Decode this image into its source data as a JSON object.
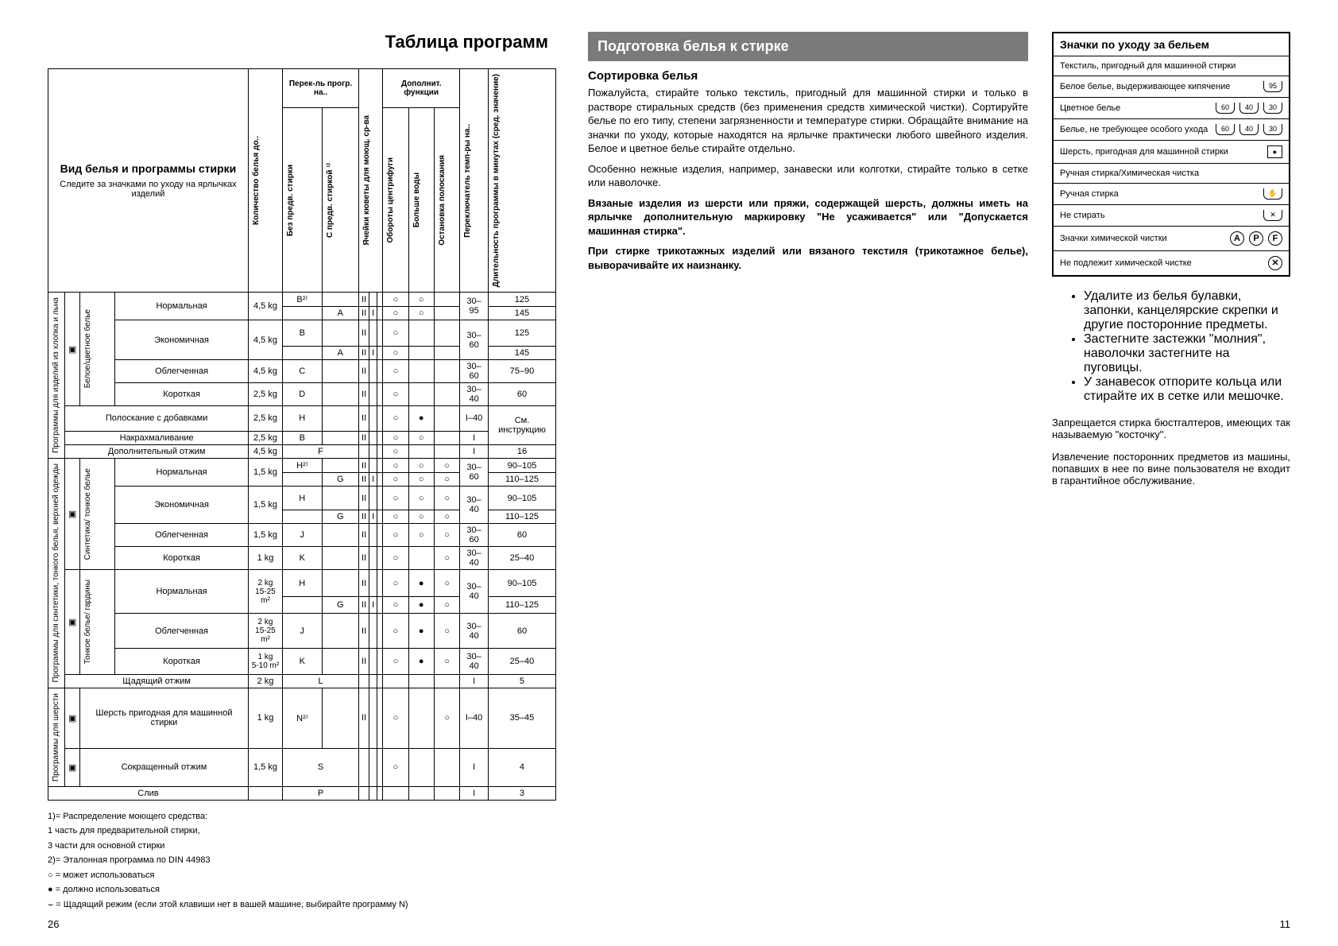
{
  "title": "Таблица программ",
  "table": {
    "header_main": "Вид белья и программы стирки",
    "header_sub": "Следите за значками по уходу на ярлычках изделий",
    "col_kolvo": "Количество белья до..",
    "grp_perekl": "Перек-ль прогр. на..",
    "col_bez": "Без предв. стирки",
    "col_spredv": "С предв. стиркой ¹⁾",
    "col_yacheiki": "Ячейки кюветы для моющ. ср-ва",
    "grp_dopfunc": "Дополнит. функции",
    "col_oboroty": "Обороты центрифуги",
    "col_bolshe": "Больше воды",
    "col_ostanovka": "Остановка полоскания",
    "col_perekl_temp": "Переключатель темп-ры на..",
    "col_dlit": "Длительность программы в минутах (сред. значение)",
    "groups": [
      {
        "vlabel": "Программы для изделий из хлопка и льна",
        "catlabel": "Белое/цветное белье",
        "rows": [
          {
            "name": "Нормальная",
            "wt": "4,5 kg",
            "c1": "B²⁾",
            "c2": "",
            "y1": "II",
            "y2": "",
            "y3": "",
            "f1": "○",
            "f2": "○",
            "f3": "",
            "temp": "30–95",
            "dur": "125",
            "rowspan_temp": 2
          },
          {
            "name": "",
            "wt": "",
            "c1": "",
            "c2": "A",
            "y1": "II",
            "y2": "I",
            "y3": "",
            "f1": "○",
            "f2": "○",
            "f3": "",
            "temp": "",
            "dur": "145"
          },
          {
            "name": "Экономичная",
            "wt": "4,5 kg",
            "c1": "B",
            "c2": "",
            "y1": "II",
            "y2": "",
            "y3": "",
            "f1": "○",
            "f2": "",
            "f3": "",
            "temp": "30–60",
            "dur": "125",
            "rowspan_temp": 2
          },
          {
            "name": "",
            "wt": "",
            "c1": "",
            "c2": "A",
            "y1": "II",
            "y2": "I",
            "y3": "",
            "f1": "○",
            "f2": "",
            "f3": "",
            "temp": "",
            "dur": "145"
          },
          {
            "name": "Облегченная",
            "wt": "4,5 kg",
            "c1": "C",
            "c2": "",
            "y1": "II",
            "y2": "",
            "y3": "",
            "f1": "○",
            "f2": "",
            "f3": "",
            "temp": "30–60",
            "dur": "75–90"
          },
          {
            "name": "Короткая",
            "wt": "2,5 kg",
            "c1": "D",
            "c2": "",
            "y1": "II",
            "y2": "",
            "y3": "",
            "f1": "○",
            "f2": "",
            "f3": "",
            "temp": "30–40",
            "dur": "60"
          }
        ],
        "extras": [
          {
            "name": "Полоскание с добавками",
            "wt": "2,5 kg",
            "c1": "H",
            "c2": "",
            "y1": "II",
            "y2": "",
            "y3": "",
            "f1": "○",
            "f2": "●",
            "f3": "",
            "temp": "I–40",
            "dur": "См. инструкцию",
            "dur_rowspan": 2
          },
          {
            "name": "Накрахмаливание",
            "wt": "2,5 kg",
            "c1": "B",
            "c2": "",
            "y1": "II",
            "y2": "",
            "y3": "",
            "f1": "○",
            "f2": "○",
            "f3": "",
            "temp": "I",
            "dur": ""
          },
          {
            "name": "Дополнительный отжим",
            "wt": "4,5 kg",
            "c1": "F",
            "colspan_c": 2,
            "c2": "",
            "y1": "",
            "y2": "",
            "y3": "",
            "f1": "○",
            "f2": "",
            "f3": "",
            "temp": "I",
            "dur": "16"
          }
        ]
      },
      {
        "vlabel": "Программы для синтетики, тонкого белья, верхней одежды",
        "catlabel": "Синтетика/ тонкое белье",
        "rows": [
          {
            "name": "Нормальная",
            "wt": "1,5 kg",
            "c1": "H²⁾",
            "c2": "",
            "y1": "II",
            "y2": "",
            "y3": "",
            "f1": "○",
            "f2": "○",
            "f3": "○",
            "temp": "30–60",
            "dur": "90–105",
            "rowspan_temp": 2
          },
          {
            "name": "",
            "wt": "",
            "c1": "",
            "c2": "G",
            "y1": "II",
            "y2": "I",
            "y3": "",
            "f1": "○",
            "f2": "○",
            "f3": "○",
            "temp": "",
            "dur": "110–125"
          },
          {
            "name": "Экономичная",
            "wt": "1,5 kg",
            "c1": "H",
            "c2": "",
            "y1": "II",
            "y2": "",
            "y3": "",
            "f1": "○",
            "f2": "○",
            "f3": "○",
            "temp": "30–40",
            "dur": "90–105",
            "rowspan_temp": 2
          },
          {
            "name": "",
            "wt": "",
            "c1": "",
            "c2": "G",
            "y1": "II",
            "y2": "I",
            "y3": "",
            "f1": "○",
            "f2": "○",
            "f3": "○",
            "temp": "",
            "dur": "110–125"
          },
          {
            "name": "Облегченная",
            "wt": "1,5 kg",
            "c1": "J",
            "c2": "",
            "y1": "II",
            "y2": "",
            "y3": "",
            "f1": "○",
            "f2": "○",
            "f3": "○",
            "temp": "30–60",
            "dur": "60"
          },
          {
            "name": "Короткая",
            "wt": "1 kg",
            "c1": "K",
            "c2": "",
            "y1": "II",
            "y2": "",
            "y3": "",
            "f1": "○",
            "f2": "",
            "f3": "○",
            "temp": "30–40",
            "dur": "25–40"
          }
        ],
        "cat2label": "Тонкое белье/ гардины",
        "rows2": [
          {
            "name": "Нормальная",
            "wt": "2 kg\n15-25 m²",
            "c1": "H",
            "c2": "",
            "y1": "II",
            "y2": "",
            "y3": "",
            "f1": "○",
            "f2": "●",
            "f3": "○",
            "temp": "30–40",
            "dur": "90–105",
            "rowspan_temp": 2
          },
          {
            "name": "",
            "wt": "",
            "c1": "",
            "c2": "G",
            "y1": "II",
            "y2": "I",
            "y3": "",
            "f1": "○",
            "f2": "●",
            "f3": "○",
            "temp": "",
            "dur": "110–125"
          },
          {
            "name": "Облегченная",
            "wt": "2 kg\n15-25 m²",
            "c1": "J",
            "c2": "",
            "y1": "II",
            "y2": "",
            "y3": "",
            "f1": "○",
            "f2": "●",
            "f3": "○",
            "temp": "30–40",
            "dur": "60"
          },
          {
            "name": "Короткая",
            "wt": "1 kg\n5-10 m²",
            "c1": "K",
            "c2": "",
            "y1": "II",
            "y2": "",
            "y3": "",
            "f1": "○",
            "f2": "●",
            "f3": "○",
            "temp": "30–40",
            "dur": "25–40"
          }
        ],
        "extras": [
          {
            "name": "Щадящий отжим",
            "wt": "2 kg",
            "c1": "L",
            "colspan_c": 2,
            "c2": "",
            "y1": "",
            "y2": "",
            "y3": "",
            "f1": "",
            "f2": "",
            "f3": "",
            "temp": "I",
            "dur": "5"
          }
        ]
      },
      {
        "vlabel": "Программы для шерсти",
        "rows": [
          {
            "name": "Шерсть пригодная для машинной стирки",
            "wt": "1 kg",
            "c1": "N²⁾",
            "c2": "",
            "y1": "II",
            "y2": "",
            "y3": "",
            "f1": "○",
            "f2": "",
            "f3": "○",
            "temp": "I–40",
            "dur": "35–45"
          },
          {
            "name": "Сокращенный отжим",
            "wt": "1,5 kg",
            "c1": "S",
            "colspan_c": 2,
            "c2": "",
            "y1": "",
            "y2": "",
            "y3": "",
            "f1": "○",
            "f2": "",
            "f3": "",
            "temp": "I",
            "dur": "4"
          }
        ]
      }
    ],
    "sliv": {
      "name": "Слив",
      "c1": "P",
      "temp": "I",
      "dur": "3"
    }
  },
  "footnotes": [
    "1)= Распределение моющего средства:",
    "    1 часть для предварительной стирки,",
    "    3 части для основной стирки",
    "2)= Эталонная программа по DIN 44983",
    "○ = может использоваться",
    "● = должно использоваться",
    "⌣ = Щадящий режим (если этой клавиши нет в вашей машине, выбирайте программу N)"
  ],
  "page_left": "26",
  "page_right": "11",
  "right": {
    "section_title": "Подготовка белья к стирке",
    "h1": "Сортировка белья",
    "p1": "Пожалуйста, стирайте только текстиль, пригодный для машинной стирки и только в растворе стиральных средств (без применения средств химической чистки). Сортируйте белье по его типу, степени загрязненности и температуре стирки. Обращайте внимание на значки по уходу, которые находятся на ярлычке практически любого швейного изделия. Белое и цветное белье стирайте отдельно.",
    "p2": "Особенно нежные изделия, например, занавески или колготки, стирайте только в сетке или наволочке.",
    "p3": "Вязаные изделия из шерсти или пряжи, содержащей шерсть, должны иметь на ярлычке дополнительную маркировку \"Не усаживается\" или \"Допускается машинная стирка\".",
    "p4": "При стирке трикотажных изделий или вязаного текстиля (трикотажное белье), выворачивайте их наизнанку.",
    "bullets": [
      "Удалите из белья булавки, запонки, канцелярские скрепки и другие посторонние предметы.",
      "Застегните застежки \"молния\", наволочки застегните на пуговицы.",
      "У занавесок отпорите кольца или стирайте их в сетке или мешочке."
    ],
    "p5": "Запрещается стирка бюстгалтеров, имеющих так называемую \"косточку\".",
    "p6": "Извлечение посторонних предметов из машины, попавших в нее по вине пользователя не входит в гарантийное обслуживание."
  },
  "carebox": {
    "title": "Значки по уходу за бельем",
    "r1": "Текстиль, пригодный для машинной стирки",
    "r2_lbl": "Белое белье, выдерживающее кипячение",
    "r2_sym": [
      "95"
    ],
    "r3_lbl": "Цветное белье",
    "r3_sym": [
      "60",
      "40",
      "30"
    ],
    "r4_lbl": "Белье, не требующее особого ухода",
    "r4_sym": [
      "60",
      "40",
      "30"
    ],
    "r5_lbl": "Шерсть, пригодная для машинной стирки",
    "r6": "Ручная стирка/Химическая чистка",
    "r7_lbl": "Ручная стирка",
    "r8_lbl": "Не стирать",
    "r9_lbl": "Значки химической чистки",
    "r9_sym": [
      "A",
      "P",
      "F"
    ],
    "r10_lbl": "Не подлежит химической чистке"
  }
}
